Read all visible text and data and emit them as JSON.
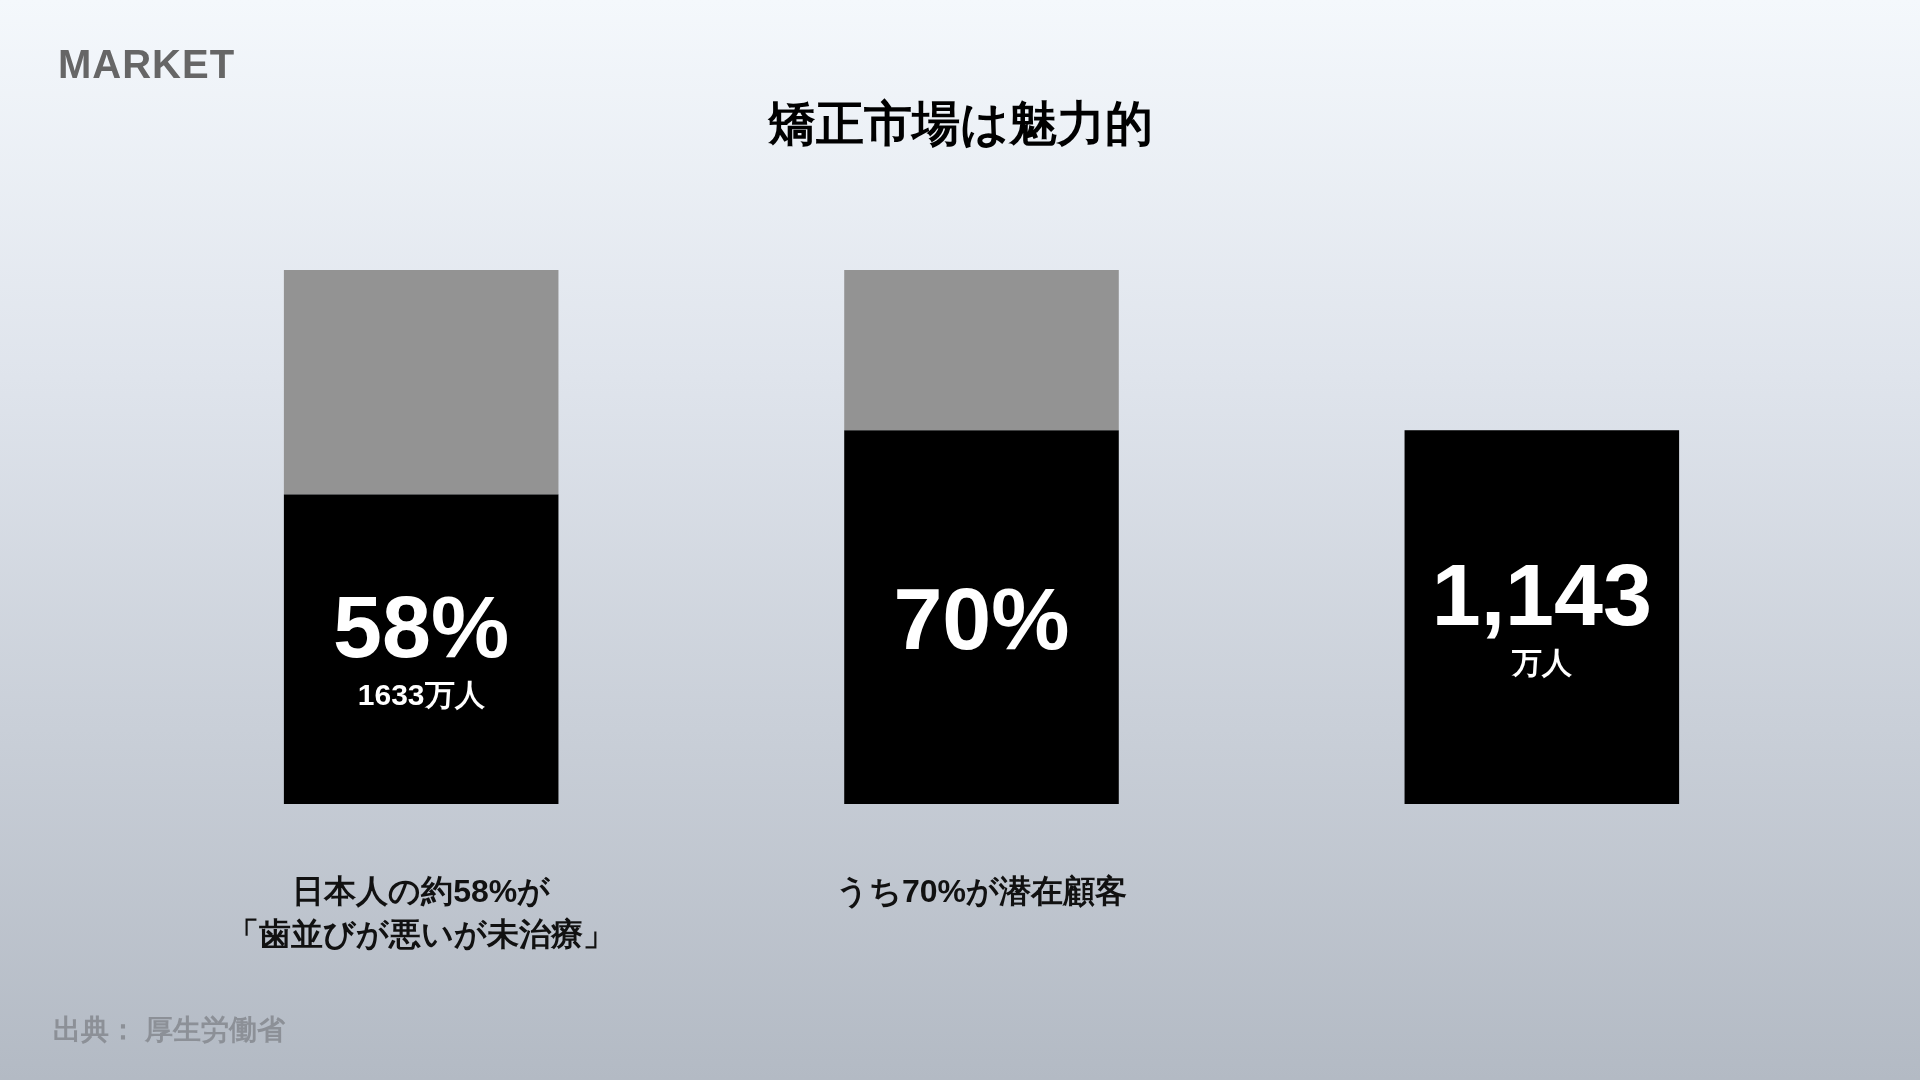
{
  "chart_data": {
    "type": "bar",
    "title": "矯正市場は魅力的",
    "categories": [
      "日本人の約58%が「歯並びが悪いが未治療」",
      "うち70%が潜在顧客",
      null
    ],
    "stacked": true,
    "tick_labels": "x",
    "ylim": [
      0,
      100
    ],
    "y2lim": [
      0,
      1633
    ],
    "series": [
      {
        "color": "#000000",
        "values": [
          58,
          70,
          null
        ],
        "value_labels": [
          "58%\n1633万人",
          "70%",
          null
        ]
      },
      {
        "color": "#939393",
        "values": [
          42,
          30,
          null
        ]
      },
      {
        "color": "#000000",
        "axis": "y2",
        "values": [
          null,
          null,
          1143
        ],
        "value_labels": [
          null,
          null,
          "1,143\n万人"
        ]
      }
    ],
    "annotations": [
      "MARKET",
      "出典： 厚生労働省"
    ]
  }
}
